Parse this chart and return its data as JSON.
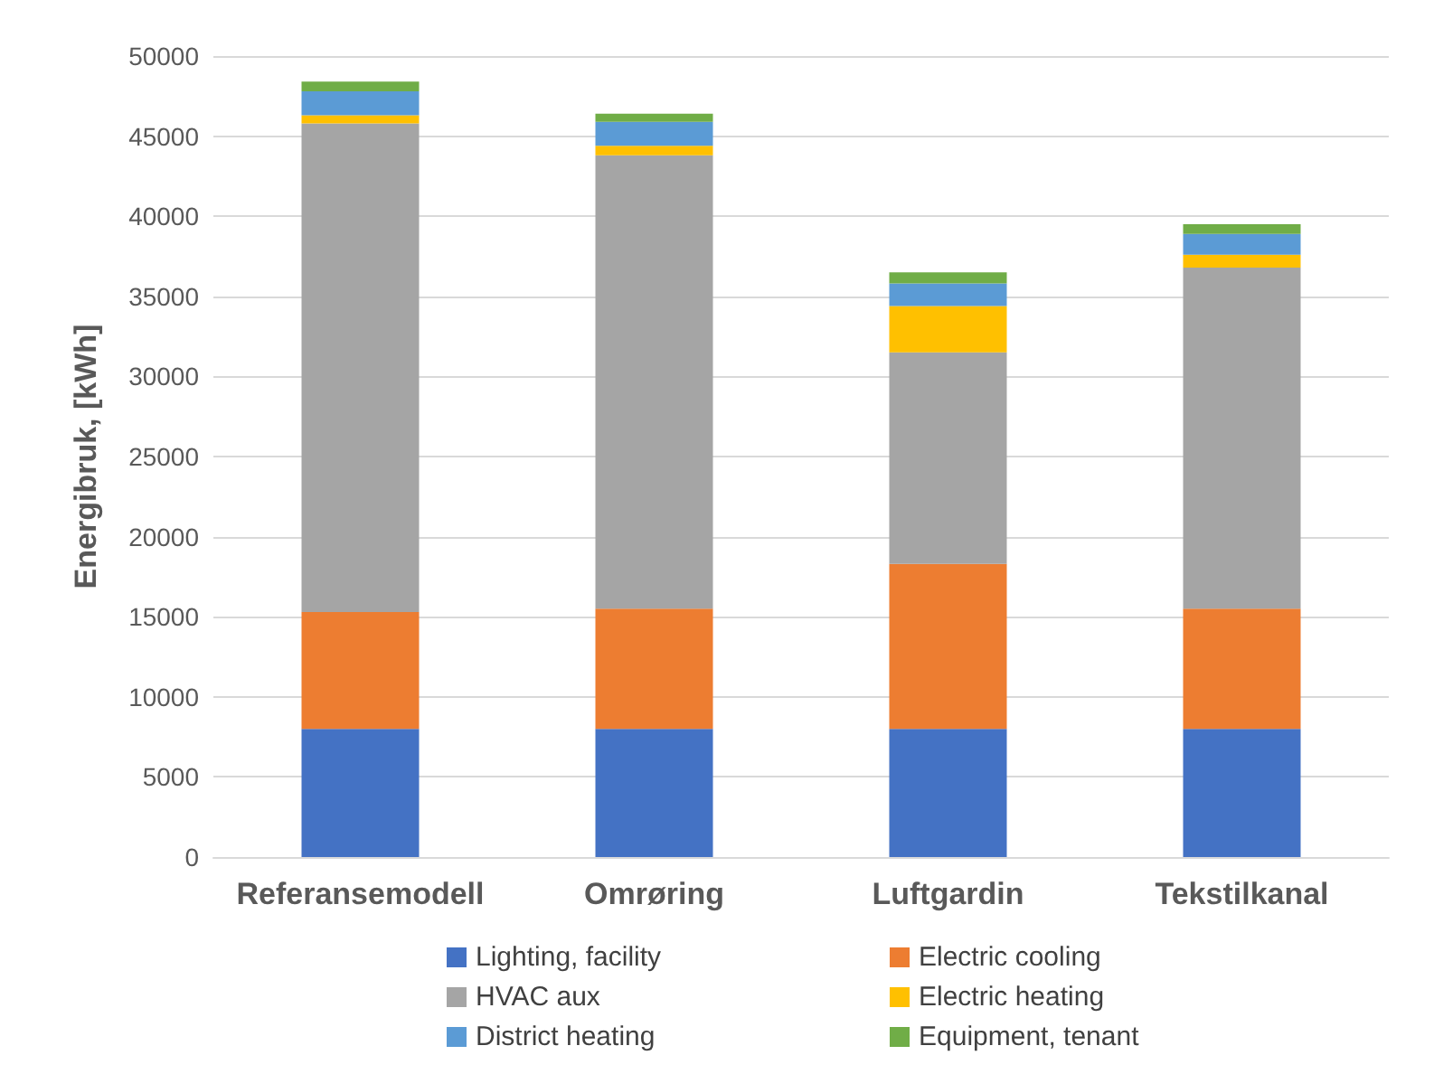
{
  "chart_data": {
    "type": "bar",
    "stacked": true,
    "ylabel": "Energibruk, [kWh]",
    "categories": [
      "Referansemodell",
      "Omrøring",
      "Luftgardin",
      "Tekstilkanal"
    ],
    "series": [
      {
        "name": "Lighting, facility",
        "color": "#4472c4",
        "values": [
          8000,
          8000,
          8000,
          8000
        ]
      },
      {
        "name": "Electric cooling",
        "color": "#ed7d31",
        "values": [
          7300,
          7500,
          10300,
          7500
        ]
      },
      {
        "name": "HVAC aux",
        "color": "#a5a5a5",
        "values": [
          30500,
          28300,
          13200,
          21300
        ]
      },
      {
        "name": "Electric heating",
        "color": "#ffc000",
        "values": [
          500,
          600,
          2900,
          800
        ]
      },
      {
        "name": "District heating",
        "color": "#5b9bd5",
        "values": [
          1500,
          1500,
          1400,
          1300
        ]
      },
      {
        "name": "Equipment, tenant",
        "color": "#70ad47",
        "values": [
          600,
          500,
          700,
          600
        ]
      }
    ],
    "ylim": [
      0,
      50000
    ],
    "yticks": [
      0,
      5000,
      10000,
      15000,
      20000,
      25000,
      30000,
      35000,
      40000,
      45000,
      50000
    ],
    "grid": "y",
    "legend": "bottom"
  }
}
